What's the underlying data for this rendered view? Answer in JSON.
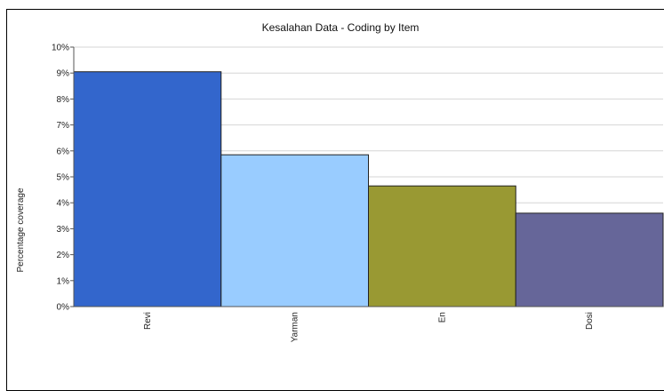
{
  "chart_data": {
    "type": "bar",
    "title": "Kesalahan Data  - Coding by Item",
    "xlabel": "",
    "ylabel": "Percentage coverage",
    "categories": [
      "Revi",
      "Yarman",
      "En",
      "Dosi"
    ],
    "values": [
      9.05,
      5.85,
      4.65,
      3.6
    ],
    "colors": [
      "#3366cc",
      "#99ccff",
      "#999933",
      "#666699"
    ],
    "ylim": [
      0,
      10
    ],
    "yticks": [
      0,
      1,
      2,
      3,
      4,
      5,
      6,
      7,
      8,
      9,
      10
    ],
    "ytick_labels": [
      "0%",
      "1%",
      "2%",
      "3%",
      "4%",
      "5%",
      "6%",
      "7%",
      "8%",
      "9%",
      "10%"
    ],
    "grid": true,
    "legend": "none"
  }
}
